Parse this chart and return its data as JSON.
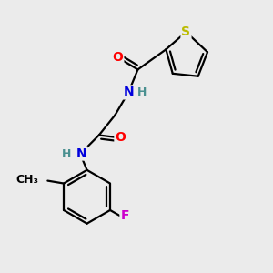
{
  "bg_color": "#ebebeb",
  "atom_colors": {
    "C": "#000000",
    "N": "#0000dd",
    "O": "#ff0000",
    "S": "#bbbb00",
    "F": "#cc00cc",
    "H": "#4a9090"
  },
  "bond_color": "#000000",
  "bond_width": 1.6,
  "font_size": 10,
  "fig_width": 3.0,
  "fig_height": 3.0,
  "dpi": 100
}
